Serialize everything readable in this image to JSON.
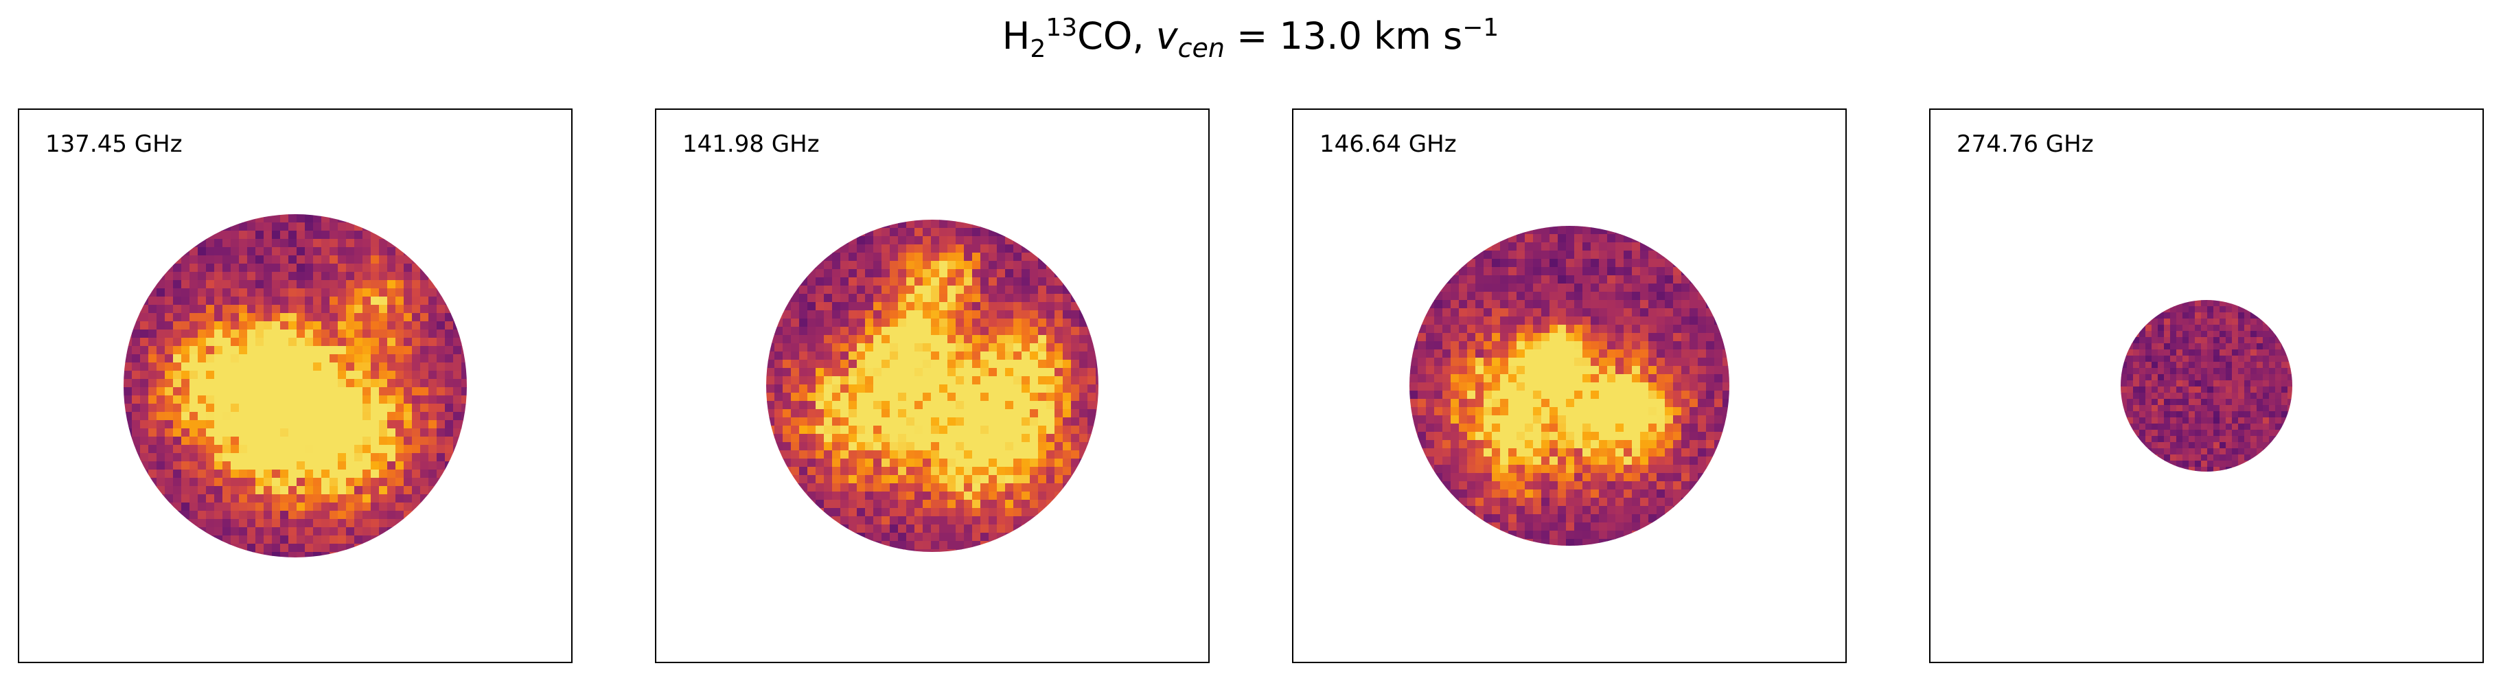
{
  "figure": {
    "title_prefix": "H",
    "title_sub": "2",
    "title_sup": "13",
    "title_after_sup": "CO, ",
    "title_var": "v",
    "title_var_sub": "cen",
    "title_eq": " =  13.0 km s",
    "title_exp": "−1"
  },
  "colormap": "inferno",
  "panels": [
    {
      "label": "137.45 GHz",
      "seed": 11
    },
    {
      "label": "141.98 GHz",
      "seed": 23
    },
    {
      "label": "146.64 GHz",
      "seed": 37
    },
    {
      "label": "274.76 GHz",
      "seed": 51
    }
  ]
}
